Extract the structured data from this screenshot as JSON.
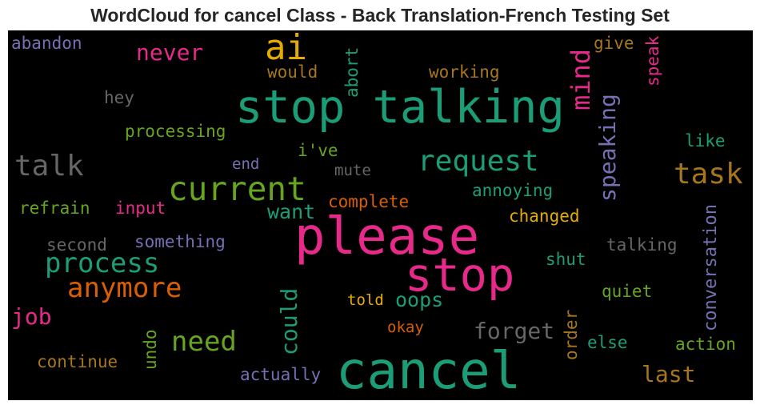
{
  "title": "WordCloud for cancel Class - Back Translation-French Testing Set",
  "words": [
    {
      "text": "please",
      "color": "#e7298a"
    },
    {
      "text": "cancel",
      "color": "#1b9e77"
    },
    {
      "text": "stop talking",
      "color": "#1b9e77"
    },
    {
      "text": "stop",
      "color": "#e7298a"
    },
    {
      "text": "ai",
      "color": "#e6ab02"
    },
    {
      "text": "current",
      "color": "#66a61e"
    },
    {
      "text": "process",
      "color": "#1b9e77"
    },
    {
      "text": "anymore",
      "color": "#d95f02"
    },
    {
      "text": "task",
      "color": "#a6761d"
    },
    {
      "text": "request",
      "color": "#1b9e77"
    },
    {
      "text": "talk",
      "color": "#666666"
    },
    {
      "text": "mind",
      "color": "#e7298a"
    },
    {
      "text": "need",
      "color": "#66a61e"
    },
    {
      "text": "never",
      "color": "#e7298a"
    },
    {
      "text": "speaking",
      "color": "#7570b3"
    },
    {
      "text": "forget",
      "color": "#666666"
    },
    {
      "text": "last",
      "color": "#a6761d"
    },
    {
      "text": "could",
      "color": "#1b9e77"
    },
    {
      "text": "want",
      "color": "#1b9e77"
    },
    {
      "text": "oops",
      "color": "#1b9e77"
    },
    {
      "text": "job",
      "color": "#e7298a"
    },
    {
      "text": "conversation",
      "color": "#7570b3"
    },
    {
      "text": "abandon",
      "color": "#7570b3"
    },
    {
      "text": "would",
      "color": "#a6761d"
    },
    {
      "text": "working",
      "color": "#a6761d"
    },
    {
      "text": "abort",
      "color": "#1b9e77"
    },
    {
      "text": "give",
      "color": "#a6761d"
    },
    {
      "text": "speak",
      "color": "#e7298a"
    },
    {
      "text": "hey",
      "color": "#666666"
    },
    {
      "text": "processing",
      "color": "#66a61e"
    },
    {
      "text": "like",
      "color": "#1b9e77"
    },
    {
      "text": "i've",
      "color": "#66a61e"
    },
    {
      "text": "end",
      "color": "#7570b3"
    },
    {
      "text": "mute",
      "color": "#666666"
    },
    {
      "text": "annoying",
      "color": "#1b9e77"
    },
    {
      "text": "complete",
      "color": "#d95f02"
    },
    {
      "text": "refrain",
      "color": "#66a61e"
    },
    {
      "text": "input",
      "color": "#e7298a"
    },
    {
      "text": "changed",
      "color": "#e6ab02"
    },
    {
      "text": "second",
      "color": "#666666"
    },
    {
      "text": "something",
      "color": "#7570b3"
    },
    {
      "text": "talking",
      "color": "#666666"
    },
    {
      "text": "shut",
      "color": "#1b9e77"
    },
    {
      "text": "quiet",
      "color": "#66a61e"
    },
    {
      "text": "told",
      "color": "#e6ab02"
    },
    {
      "text": "okay",
      "color": "#d95f02"
    },
    {
      "text": "undo",
      "color": "#66a61e"
    },
    {
      "text": "order",
      "color": "#a6761d"
    },
    {
      "text": "else",
      "color": "#1b9e77"
    },
    {
      "text": "action",
      "color": "#66a61e"
    },
    {
      "text": "continue",
      "color": "#a6761d"
    },
    {
      "text": "actually",
      "color": "#7570b3"
    }
  ]
}
